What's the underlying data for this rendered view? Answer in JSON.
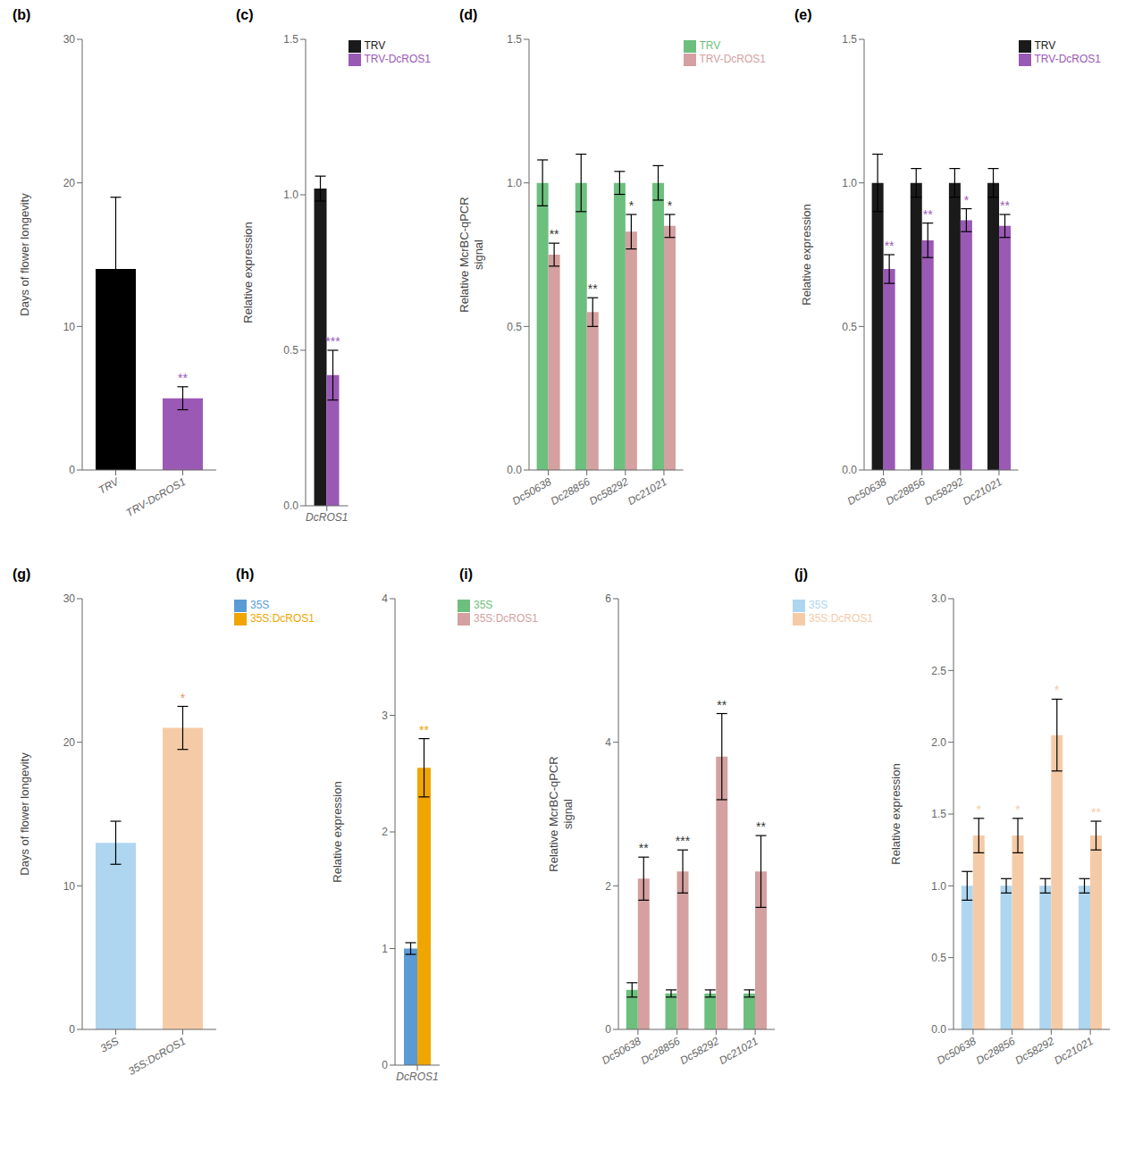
{
  "chart_data": [
    {
      "type": "bar",
      "title": "(b)",
      "categories": [
        "TRV",
        "TRV-DcROS1"
      ],
      "values": [
        14.0,
        5.0
      ],
      "errors": [
        5.0,
        0.8
      ],
      "colors": [
        "black",
        "#9B59B6"
      ],
      "ylabel": "Days of flower longevity",
      "ylim": [
        0,
        30
      ],
      "yticks": [
        0,
        10,
        20,
        30
      ],
      "annotations": [
        {
          "text": "**",
          "category": "TRV-DcROS1",
          "color": "#9B59B6"
        }
      ]
    },
    {
      "type": "bar",
      "title": "(c)",
      "categories": [
        "DcROS1"
      ],
      "series": [
        {
          "name": "TRV",
          "color": "#1a1a1a",
          "values": [
            1.02
          ],
          "errors": [
            0.04
          ]
        },
        {
          "name": "TRV-DcROS1",
          "color": "#9B59B6",
          "values": [
            0.42
          ],
          "errors": [
            0.08
          ]
        }
      ],
      "ylabel": "Relative expression",
      "ylim": [
        0.0,
        1.5
      ],
      "yticks": [
        {
          "value": 0.0,
          "label": "0.0"
        },
        0.5,
        {
          "value": 1.0,
          "label": "1.0"
        },
        1.5
      ],
      "legend": "upper right",
      "annotations": [
        {
          "text": "***",
          "category": "DcROS1",
          "series": "TRV-DcROS1",
          "color": "#9B59B6"
        }
      ]
    },
    {
      "type": "bar",
      "title": "(d)",
      "categories": [
        "Dc50638",
        "Dc28856",
        "Dc58292",
        "Dc21021"
      ],
      "series": [
        {
          "name": "TRV",
          "color": "#6dbf7e",
          "values": [
            1.0,
            1.0,
            1.0,
            1.0
          ],
          "errors": [
            0.08,
            0.1,
            0.04,
            0.06
          ]
        },
        {
          "name": "TRV-DcROS1",
          "color": "#d4a0a0",
          "values": [
            0.75,
            0.55,
            0.83,
            0.85
          ],
          "errors": [
            0.04,
            0.05,
            0.06,
            0.04
          ]
        }
      ],
      "ylabel": "Relative McrBC-qPCR\nsignal",
      "ylim": [
        0.0,
        1.5
      ],
      "yticks": [
        {
          "value": 0.0,
          "label": "0.0"
        },
        0.5,
        {
          "value": 1.0,
          "label": "1.0"
        },
        1.5
      ],
      "legend": "upper right",
      "annotations": [
        {
          "text": "**",
          "category": "Dc50638",
          "series": "TRV-DcROS1",
          "color": "#333333"
        },
        {
          "text": "**",
          "category": "Dc28856",
          "series": "TRV-DcROS1",
          "color": "#333333"
        },
        {
          "text": "*",
          "category": "Dc58292",
          "series": "TRV-DcROS1",
          "color": "#333333"
        },
        {
          "text": "*",
          "category": "Dc21021",
          "series": "TRV-DcROS1",
          "color": "#333333"
        }
      ]
    },
    {
      "type": "bar",
      "title": "(e)",
      "categories": [
        "Dc50638",
        "Dc28856",
        "Dc58292",
        "Dc21021"
      ],
      "series": [
        {
          "name": "TRV",
          "color": "#1a1a1a",
          "values": [
            1.0,
            1.0,
            1.0,
            1.0
          ],
          "errors": [
            0.1,
            0.05,
            0.05,
            0.05
          ]
        },
        {
          "name": "TRV-DcROS1",
          "color": "#9B59B6",
          "values": [
            0.7,
            0.8,
            0.87,
            0.85
          ],
          "errors": [
            0.05,
            0.06,
            0.04,
            0.04
          ]
        }
      ],
      "ylabel": "Relative expression",
      "ylim": [
        0.0,
        1.5
      ],
      "yticks": [
        {
          "value": 0.0,
          "label": "0.0"
        },
        0.5,
        {
          "value": 1.0,
          "label": "1.0"
        },
        1.5
      ],
      "legend": "upper right",
      "annotations": [
        {
          "text": "**",
          "category": "Dc50638",
          "series": "TRV-DcROS1",
          "color": "#9B59B6"
        },
        {
          "text": "**",
          "category": "Dc28856",
          "series": "TRV-DcROS1",
          "color": "#9B59B6"
        },
        {
          "text": "*",
          "category": "Dc58292",
          "series": "TRV-DcROS1",
          "color": "#9B59B6"
        },
        {
          "text": "**",
          "category": "Dc21021",
          "series": "TRV-DcROS1",
          "color": "#9B59B6"
        }
      ]
    },
    {
      "type": "bar",
      "title": "(g)",
      "categories": [
        "35S",
        "35S:DcROS1"
      ],
      "values": [
        13.0,
        21.0
      ],
      "errors": [
        1.5,
        1.5
      ],
      "colors": [
        "#AED6F1",
        "#F5CBA7"
      ],
      "ylabel": "Days of flower longevity",
      "ylim": [
        0,
        30
      ],
      "yticks": [
        0,
        10,
        20,
        30
      ],
      "annotations": [
        {
          "text": "*",
          "category": "35S:DcROS1",
          "color": "#E59866"
        }
      ]
    },
    {
      "type": "bar",
      "title": "(h)",
      "categories": [
        "DcROS1"
      ],
      "series": [
        {
          "name": "35S",
          "color": "#5B9BD5",
          "values": [
            1.0
          ],
          "errors": [
            0.05
          ]
        },
        {
          "name": "35S:DcROS1",
          "color": "#F0A500",
          "values": [
            2.55
          ],
          "errors": [
            0.25
          ]
        }
      ],
      "ylabel": "Relative expression",
      "ylim": [
        0.0,
        4.0
      ],
      "yticks": [
        0,
        1,
        2,
        3,
        4
      ],
      "legend": "upper left",
      "annotations": [
        {
          "text": "**",
          "category": "DcROS1",
          "series": "35S:DcROS1",
          "color": "#F0A500"
        }
      ]
    },
    {
      "type": "bar",
      "title": "(i)",
      "categories": [
        "Dc50638",
        "Dc28856",
        "Dc58292",
        "Dc21021"
      ],
      "series": [
        {
          "name": "35S",
          "color": "#6dbf7e",
          "values": [
            0.55,
            0.5,
            0.5,
            0.5
          ],
          "errors": [
            0.1,
            0.05,
            0.05,
            0.05
          ]
        },
        {
          "name": "35S:DcROS1",
          "color": "#d4a0a0",
          "values": [
            2.1,
            2.2,
            3.8,
            2.2
          ],
          "errors": [
            0.3,
            0.3,
            0.6,
            0.5
          ]
        }
      ],
      "ylabel": "Relative McrBC-qPCR\nsignal",
      "ylim": [
        0.0,
        6.0
      ],
      "yticks": [
        0,
        2,
        4,
        6
      ],
      "legend": "upper left",
      "annotations": [
        {
          "text": "**",
          "category": "Dc50638",
          "series": "35S:DcROS1",
          "color": "#333333"
        },
        {
          "text": "***",
          "category": "Dc28856",
          "series": "35S:DcROS1",
          "color": "#333333"
        },
        {
          "text": "**",
          "category": "Dc58292",
          "series": "35S:DcROS1",
          "color": "#333333"
        },
        {
          "text": "**",
          "category": "Dc21021",
          "series": "35S:DcROS1",
          "color": "#333333"
        }
      ]
    },
    {
      "type": "bar",
      "title": "(j)",
      "categories": [
        "Dc50638",
        "Dc28856",
        "Dc58292",
        "Dc21021"
      ],
      "series": [
        {
          "name": "35S",
          "color": "#AED6F1",
          "values": [
            1.0,
            1.0,
            1.0,
            1.0
          ],
          "errors": [
            0.1,
            0.05,
            0.05,
            0.05
          ]
        },
        {
          "name": "35S:DcROS1",
          "color": "#F5CBA7",
          "values": [
            1.35,
            1.35,
            2.05,
            1.35
          ],
          "errors": [
            0.12,
            0.12,
            0.25,
            0.1
          ]
        }
      ],
      "ylabel": "Relative expression",
      "ylim": [
        0.0,
        3.0
      ],
      "yticks": [
        {
          "value": 0.0,
          "label": "0.0"
        },
        0.5,
        {
          "value": 1.0,
          "label": "1.0"
        },
        1.5,
        {
          "value": 2.0,
          "label": "2.0"
        },
        2.5,
        {
          "value": 3.0,
          "label": "3.0"
        }
      ],
      "legend": "upper left",
      "annotations": [
        {
          "text": "*",
          "category": "Dc50638",
          "series": "35S:DcROS1",
          "color": "#F5CBA7"
        },
        {
          "text": "*",
          "category": "Dc28856",
          "series": "35S:DcROS1",
          "color": "#F5CBA7"
        },
        {
          "text": "*",
          "category": "Dc58292",
          "series": "35S:DcROS1",
          "color": "#F5CBA7"
        },
        {
          "text": "**",
          "category": "Dc21021",
          "series": "35S:DcROS1",
          "color": "#F5CBA7"
        }
      ]
    }
  ]
}
